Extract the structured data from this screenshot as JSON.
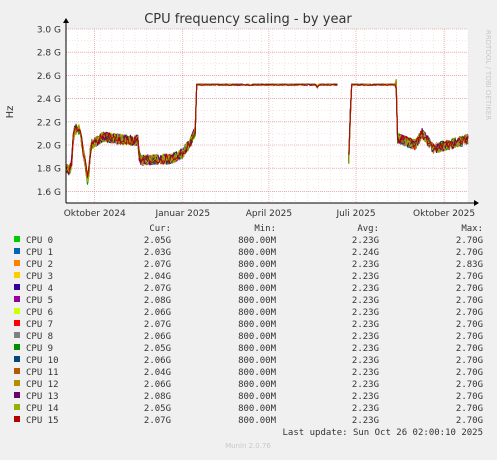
{
  "chart_data": {
    "type": "line",
    "title": "CPU frequency scaling - by year",
    "ylabel": "Hz",
    "side_label": "RRDTOOL / TOBI OETIKER",
    "yticks": [
      {
        "v": 1.6,
        "label": "1.6 G"
      },
      {
        "v": 1.8,
        "label": "1.8 G"
      },
      {
        "v": 2.0,
        "label": "2.0 G"
      },
      {
        "v": 2.2,
        "label": "2.2 G"
      },
      {
        "v": 2.4,
        "label": "2.4 G"
      },
      {
        "v": 2.6,
        "label": "2.6 G"
      },
      {
        "v": 2.8,
        "label": "2.8 G"
      },
      {
        "v": 3.0,
        "label": "3.0 G"
      }
    ],
    "ylim": [
      1.5,
      3.0
    ],
    "xlim": [
      "2024-09-01",
      "2025-10-26"
    ],
    "xticks": [
      {
        "date": "2024-10-01",
        "label": "Oktober 2024"
      },
      {
        "date": "2025-01-01",
        "label": "Januar 2025"
      },
      {
        "date": "2025-04-01",
        "label": "April 2025"
      },
      {
        "date": "2025-07-01",
        "label": "Juli 2025"
      },
      {
        "date": "2025-10-01",
        "label": "Oktober 2025"
      }
    ],
    "grid": true,
    "trend": [
      [
        "2024-09-01",
        1.8
      ],
      [
        "2024-09-05",
        1.78
      ],
      [
        "2024-09-07",
        1.86
      ],
      [
        "2024-09-09",
        2.12
      ],
      [
        "2024-09-14",
        2.15
      ],
      [
        "2024-09-17",
        2.05
      ],
      [
        "2024-09-24",
        1.68
      ],
      [
        "2024-09-27",
        2.0
      ],
      [
        "2024-10-10",
        2.07
      ],
      [
        "2024-11-05",
        2.04
      ],
      [
        "2024-11-15",
        2.04
      ],
      [
        "2024-11-17",
        1.87
      ],
      [
        "2024-12-20",
        1.88
      ],
      [
        "2025-01-01",
        1.93
      ],
      [
        "2025-01-09",
        2.02
      ],
      [
        "2025-01-14",
        2.12
      ],
      [
        "2025-01-15",
        2.52
      ],
      [
        "2025-05-20",
        2.52
      ],
      [
        "2025-05-22",
        2.49
      ],
      [
        "2025-05-23",
        2.52
      ],
      [
        "2025-06-12",
        2.52
      ],
      [
        "2025-06-12",
        null
      ],
      [
        "2025-06-23",
        null
      ],
      [
        "2025-06-23",
        1.75
      ],
      [
        "2025-06-26",
        2.52
      ],
      [
        "2025-08-12",
        2.52
      ],
      [
        "2025-08-13",
        2.06
      ],
      [
        "2025-09-01",
        2.0
      ],
      [
        "2025-09-08",
        2.1
      ],
      [
        "2025-09-20",
        1.97
      ],
      [
        "2025-10-05",
        2.0
      ],
      [
        "2025-10-26",
        2.05
      ]
    ],
    "series": [
      {
        "name": "CPU 0",
        "color": "#00cc00",
        "cur": "2.05G",
        "min": "800.00M",
        "avg": "2.23G",
        "max": "2.70G"
      },
      {
        "name": "CPU 1",
        "color": "#0066b3",
        "cur": "2.03G",
        "min": "800.00M",
        "avg": "2.24G",
        "max": "2.70G"
      },
      {
        "name": "CPU 2",
        "color": "#ff8000",
        "cur": "2.07G",
        "min": "800.00M",
        "avg": "2.23G",
        "max": "2.83G"
      },
      {
        "name": "CPU 3",
        "color": "#ffcc00",
        "cur": "2.04G",
        "min": "800.00M",
        "avg": "2.23G",
        "max": "2.70G"
      },
      {
        "name": "CPU 4",
        "color": "#330099",
        "cur": "2.07G",
        "min": "800.00M",
        "avg": "2.23G",
        "max": "2.70G"
      },
      {
        "name": "CPU 5",
        "color": "#990099",
        "cur": "2.08G",
        "min": "800.00M",
        "avg": "2.23G",
        "max": "2.70G"
      },
      {
        "name": "CPU 6",
        "color": "#ccff00",
        "cur": "2.06G",
        "min": "800.00M",
        "avg": "2.23G",
        "max": "2.70G"
      },
      {
        "name": "CPU 7",
        "color": "#ff0000",
        "cur": "2.07G",
        "min": "800.00M",
        "avg": "2.23G",
        "max": "2.70G"
      },
      {
        "name": "CPU 8",
        "color": "#808080",
        "cur": "2.06G",
        "min": "800.00M",
        "avg": "2.23G",
        "max": "2.70G"
      },
      {
        "name": "CPU 9",
        "color": "#008f00",
        "cur": "2.05G",
        "min": "800.00M",
        "avg": "2.23G",
        "max": "2.70G"
      },
      {
        "name": "CPU 10",
        "color": "#00487d",
        "cur": "2.06G",
        "min": "800.00M",
        "avg": "2.23G",
        "max": "2.70G"
      },
      {
        "name": "CPU 11",
        "color": "#b35a00",
        "cur": "2.04G",
        "min": "800.00M",
        "avg": "2.23G",
        "max": "2.70G"
      },
      {
        "name": "CPU 12",
        "color": "#b38f00",
        "cur": "2.06G",
        "min": "800.00M",
        "avg": "2.23G",
        "max": "2.70G"
      },
      {
        "name": "CPU 13",
        "color": "#6b006b",
        "cur": "2.08G",
        "min": "800.00M",
        "avg": "2.23G",
        "max": "2.70G"
      },
      {
        "name": "CPU 14",
        "color": "#8fb300",
        "cur": "2.05G",
        "min": "800.00M",
        "avg": "2.23G",
        "max": "2.70G"
      },
      {
        "name": "CPU 15",
        "color": "#b30000",
        "cur": "2.07G",
        "min": "800.00M",
        "avg": "2.23G",
        "max": "2.70G"
      }
    ],
    "legend_headers": {
      "cur": "Cur:",
      "min": "Min:",
      "avg": "Avg:",
      "max": "Max:"
    }
  },
  "footer": {
    "last_update": "Last update: Sun Oct 26 02:00:10 2025",
    "version": "Munin 2.0.76"
  }
}
